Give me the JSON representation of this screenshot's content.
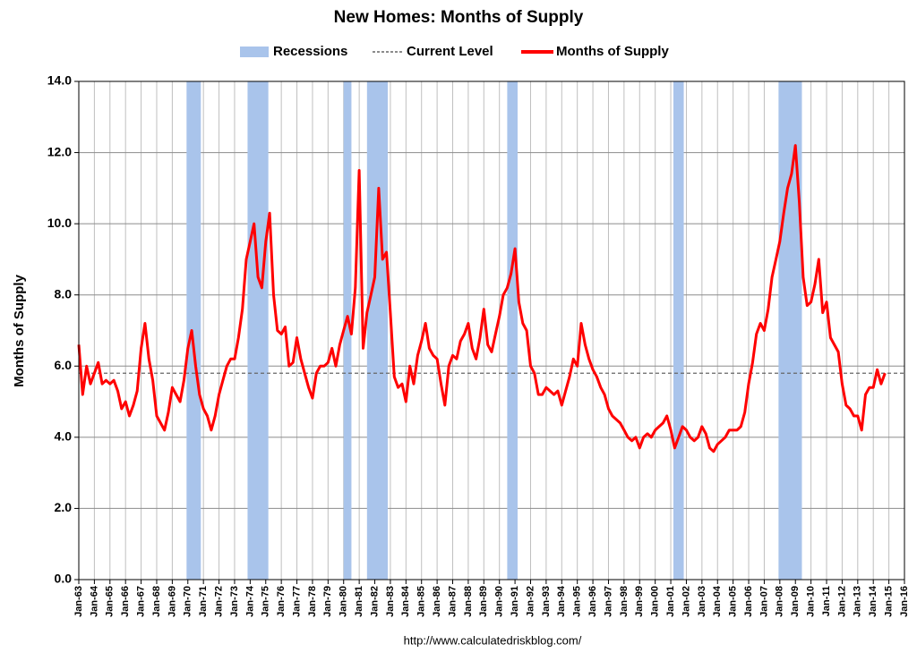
{
  "chart_data": {
    "type": "line",
    "title": "New Homes: Months of Supply",
    "y_label": "Months of Supply",
    "source": "http://www.calculatedriskblog.com/",
    "ylim": [
      0,
      14
    ],
    "yticks": [
      {
        "value": 0,
        "label": "0.0"
      },
      {
        "value": 2,
        "label": "2.0"
      },
      {
        "value": 4,
        "label": "4.0"
      },
      {
        "value": 6,
        "label": "6.0"
      },
      {
        "value": 8,
        "label": "8.0"
      },
      {
        "value": 10,
        "label": "10.0"
      },
      {
        "value": 12,
        "label": "12.0"
      },
      {
        "value": 14,
        "label": "14.0"
      }
    ],
    "xlim": [
      "Jan-63",
      "Jan-16"
    ],
    "xticks": [
      "Jan-63",
      "Jan-64",
      "Jan-65",
      "Jan-66",
      "Jan-67",
      "Jan-68",
      "Jan-69",
      "Jan-70",
      "Jan-71",
      "Jan-72",
      "Jan-73",
      "Jan-74",
      "Jan-75",
      "Jan-76",
      "Jan-77",
      "Jan-78",
      "Jan-79",
      "Jan-80",
      "Jan-81",
      "Jan-82",
      "Jan-83",
      "Jan-84",
      "Jan-85",
      "Jan-86",
      "Jan-87",
      "Jan-88",
      "Jan-89",
      "Jan-90",
      "Jan-91",
      "Jan-92",
      "Jan-93",
      "Jan-94",
      "Jan-95",
      "Jan-96",
      "Jan-97",
      "Jan-98",
      "Jan-99",
      "Jan-00",
      "Jan-01",
      "Jan-02",
      "Jan-03",
      "Jan-04",
      "Jan-05",
      "Jan-06",
      "Jan-07",
      "Jan-08",
      "Jan-09",
      "Jan-10",
      "Jan-11",
      "Jan-12",
      "Jan-13",
      "Jan-14",
      "Jan-15",
      "Jan-16"
    ],
    "grid": true,
    "recessions": {
      "name": "Recessions",
      "color": "#a9c4eb",
      "periods": [
        [
          "Dec-69",
          "Nov-70"
        ],
        [
          "Nov-73",
          "Mar-75"
        ],
        [
          "Jan-80",
          "Jul-80"
        ],
        [
          "Jul-81",
          "Nov-82"
        ],
        [
          "Jul-90",
          "Mar-91"
        ],
        [
          "Mar-01",
          "Nov-01"
        ],
        [
          "Dec-07",
          "Jun-09"
        ]
      ]
    },
    "current_level": {
      "name": "Current Level",
      "value": 5.8,
      "color": "#666666"
    },
    "series": [
      {
        "name": "Months of Supply",
        "color": "#ff0000",
        "x": [
          "Jan-63",
          "Apr-63",
          "Jul-63",
          "Oct-63",
          "Jan-64",
          "Apr-64",
          "Jul-64",
          "Oct-64",
          "Jan-65",
          "Apr-65",
          "Jul-65",
          "Oct-65",
          "Jan-66",
          "Apr-66",
          "Jul-66",
          "Oct-66",
          "Jan-67",
          "Apr-67",
          "Jul-67",
          "Oct-67",
          "Jan-68",
          "Apr-68",
          "Jul-68",
          "Oct-68",
          "Jan-69",
          "Apr-69",
          "Jul-69",
          "Oct-69",
          "Jan-70",
          "Apr-70",
          "Jul-70",
          "Oct-70",
          "Jan-71",
          "Apr-71",
          "Jul-71",
          "Oct-71",
          "Jan-72",
          "Apr-72",
          "Jul-72",
          "Oct-72",
          "Jan-73",
          "Apr-73",
          "Jul-73",
          "Oct-73",
          "Jan-74",
          "Apr-74",
          "Jul-74",
          "Oct-74",
          "Jan-75",
          "Apr-75",
          "Jul-75",
          "Oct-75",
          "Jan-76",
          "Apr-76",
          "Jul-76",
          "Oct-76",
          "Jan-77",
          "Apr-77",
          "Jul-77",
          "Oct-77",
          "Jan-78",
          "Apr-78",
          "Jul-78",
          "Oct-78",
          "Jan-79",
          "Apr-79",
          "Jul-79",
          "Oct-79",
          "Jan-80",
          "Apr-80",
          "Jul-80",
          "Oct-80",
          "Jan-81",
          "Apr-81",
          "Jul-81",
          "Oct-81",
          "Jan-82",
          "Apr-82",
          "Jul-82",
          "Oct-82",
          "Jan-83",
          "Apr-83",
          "Jul-83",
          "Oct-83",
          "Jan-84",
          "Apr-84",
          "Jul-84",
          "Oct-84",
          "Jan-85",
          "Apr-85",
          "Jul-85",
          "Oct-85",
          "Jan-86",
          "Apr-86",
          "Jul-86",
          "Oct-86",
          "Jan-87",
          "Apr-87",
          "Jul-87",
          "Oct-87",
          "Jan-88",
          "Apr-88",
          "Jul-88",
          "Oct-88",
          "Jan-89",
          "Apr-89",
          "Jul-89",
          "Oct-89",
          "Jan-90",
          "Apr-90",
          "Jul-90",
          "Oct-90",
          "Jan-91",
          "Apr-91",
          "Jul-91",
          "Oct-91",
          "Jan-92",
          "Apr-92",
          "Jul-92",
          "Oct-92",
          "Jan-93",
          "Apr-93",
          "Jul-93",
          "Oct-93",
          "Jan-94",
          "Apr-94",
          "Jul-94",
          "Oct-94",
          "Jan-95",
          "Apr-95",
          "Jul-95",
          "Oct-95",
          "Jan-96",
          "Apr-96",
          "Jul-96",
          "Oct-96",
          "Jan-97",
          "Apr-97",
          "Jul-97",
          "Oct-97",
          "Jan-98",
          "Apr-98",
          "Jul-98",
          "Oct-98",
          "Jan-99",
          "Apr-99",
          "Jul-99",
          "Oct-99",
          "Jan-00",
          "Apr-00",
          "Jul-00",
          "Oct-00",
          "Jan-01",
          "Apr-01",
          "Jul-01",
          "Oct-01",
          "Jan-02",
          "Apr-02",
          "Jul-02",
          "Oct-02",
          "Jan-03",
          "Apr-03",
          "Jul-03",
          "Oct-03",
          "Jan-04",
          "Apr-04",
          "Jul-04",
          "Oct-04",
          "Jan-05",
          "Apr-05",
          "Jul-05",
          "Oct-05",
          "Jan-06",
          "Apr-06",
          "Jul-06",
          "Oct-06",
          "Jan-07",
          "Apr-07",
          "Jul-07",
          "Oct-07",
          "Jan-08",
          "Apr-08",
          "Jul-08",
          "Oct-08",
          "Jan-09",
          "Apr-09",
          "Jul-09",
          "Oct-09",
          "Jan-10",
          "Apr-10",
          "Jul-10",
          "Oct-10",
          "Jan-11",
          "Apr-11",
          "Jul-11",
          "Oct-11",
          "Jan-12",
          "Apr-12",
          "Jul-12",
          "Oct-12",
          "Jan-13",
          "Apr-13",
          "Jul-13",
          "Oct-13",
          "Jan-14",
          "Apr-14",
          "Jul-14",
          "Oct-14"
        ],
        "values": [
          6.6,
          5.2,
          6.0,
          5.5,
          5.8,
          6.1,
          5.5,
          5.6,
          5.5,
          5.6,
          5.3,
          4.8,
          5.0,
          4.6,
          4.9,
          5.3,
          6.5,
          7.2,
          6.2,
          5.6,
          4.6,
          4.4,
          4.2,
          4.7,
          5.4,
          5.2,
          5.0,
          5.6,
          6.5,
          7.0,
          6.0,
          5.2,
          4.8,
          4.6,
          4.2,
          4.6,
          5.2,
          5.6,
          6.0,
          6.2,
          6.2,
          6.8,
          7.6,
          9.0,
          9.5,
          10.0,
          8.5,
          8.2,
          9.5,
          10.3,
          8.0,
          7.0,
          6.9,
          7.1,
          6.0,
          6.1,
          6.8,
          6.2,
          5.8,
          5.4,
          5.1,
          5.8,
          6.0,
          6.0,
          6.1,
          6.5,
          6.0,
          6.6,
          7.0,
          7.4,
          6.9,
          8.2,
          11.5,
          6.5,
          7.5,
          8.0,
          8.5,
          11.0,
          9.0,
          9.2,
          7.5,
          5.7,
          5.4,
          5.5,
          5.0,
          6.0,
          5.5,
          6.3,
          6.7,
          7.2,
          6.5,
          6.3,
          6.2,
          5.5,
          4.9,
          6.0,
          6.3,
          6.2,
          6.7,
          6.9,
          7.2,
          6.5,
          6.2,
          6.8,
          7.6,
          6.6,
          6.4,
          6.9,
          7.4,
          8.0,
          8.2,
          8.6,
          9.3,
          7.8,
          7.2,
          7.0,
          6.0,
          5.8,
          5.2,
          5.2,
          5.4,
          5.3,
          5.2,
          5.3,
          4.9,
          5.3,
          5.7,
          6.2,
          6.0,
          7.2,
          6.6,
          6.2,
          5.9,
          5.7,
          5.4,
          5.2,
          4.8,
          4.6,
          4.5,
          4.4,
          4.2,
          4.0,
          3.9,
          4.0,
          3.7,
          4.0,
          4.1,
          4.0,
          4.2,
          4.3,
          4.4,
          4.6,
          4.2,
          3.7,
          4.0,
          4.3,
          4.2,
          4.0,
          3.9,
          4.0,
          4.3,
          4.1,
          3.7,
          3.6,
          3.8,
          3.9,
          4.0,
          4.2,
          4.2,
          4.2,
          4.3,
          4.7,
          5.5,
          6.1,
          6.9,
          7.2,
          7.0,
          7.6,
          8.5,
          9.0,
          9.5,
          10.3,
          11.0,
          11.4,
          12.2,
          10.6,
          8.5,
          7.7,
          7.8,
          8.3,
          9.0,
          7.5,
          7.8,
          6.8,
          6.6,
          6.4,
          5.5,
          4.9,
          4.8,
          4.6,
          4.6,
          4.2,
          5.2,
          5.4,
          5.4,
          5.9,
          5.5,
          5.8
        ]
      }
    ]
  }
}
